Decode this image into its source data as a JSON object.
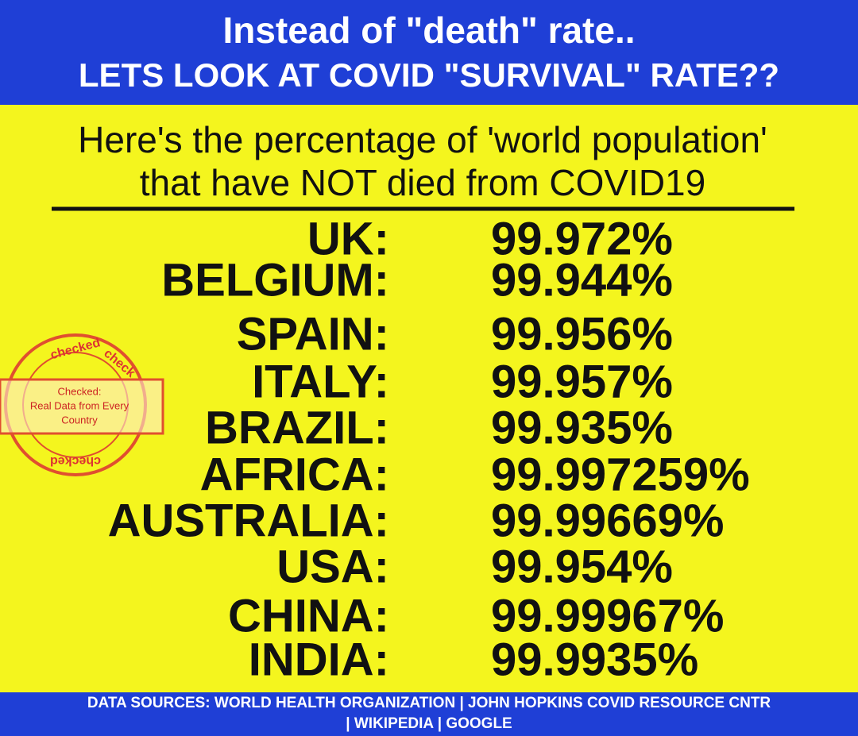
{
  "header": {
    "lines": [
      "Instead of \"death\" rate..",
      "LETS LOOK AT COVID \"SURVIVAL\" RATE??"
    ]
  },
  "subtitle": {
    "lines": [
      "Here's the percentage of 'world population'",
      "that have NOT died from COVID19"
    ]
  },
  "table": {
    "rows": [
      [
        "UK:",
        "99.972%"
      ],
      [
        "BELGIUM:",
        "99.944%"
      ],
      [
        "SPAIN:",
        "99.956%"
      ],
      [
        "ITALY:",
        "99.957%"
      ],
      [
        "BRAZIL:",
        "99.935%"
      ],
      [
        "AFRICA:",
        "99.997259%"
      ],
      [
        "AUSTRALIA:",
        "99.99669%"
      ],
      [
        "USA:",
        "99.954%"
      ],
      [
        "CHINA:",
        "99.99967%"
      ],
      [
        "INDIA:",
        "99.9935%"
      ]
    ]
  },
  "stamp": {
    "ring": [
      "checked",
      "check",
      "checked"
    ],
    "lines": [
      "Checked:",
      "Real Data from Every",
      "Country"
    ]
  },
  "footer": {
    "lines": [
      "DATA SOURCES: WORLD HEALTH ORGANIZATION | JOHN HOPKINS COVID RESOURCE CNTR",
      "| WIKIPEDIA | GOOGLE"
    ]
  }
}
